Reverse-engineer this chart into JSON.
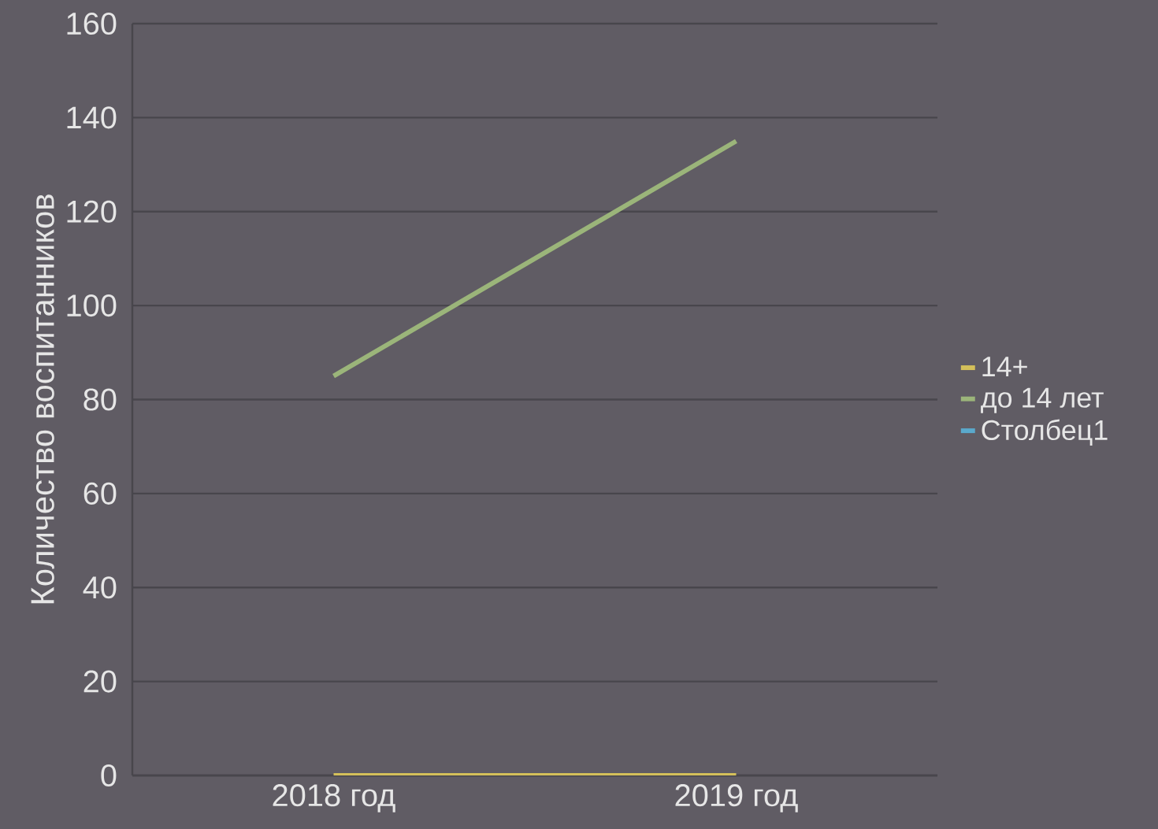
{
  "chart_data": {
    "type": "line",
    "ylabel": "Количество воспитанников",
    "categories": [
      "2018 год",
      "2019 год"
    ],
    "series": [
      {
        "name": "14+",
        "color": "#d4c05a",
        "values": [
          0,
          0
        ]
      },
      {
        "name": "до 14 лет",
        "color": "#9bb57a",
        "values": [
          85,
          135
        ]
      },
      {
        "name": "Столбец1",
        "color": "#5aa9cc",
        "values": [
          null,
          null
        ]
      }
    ],
    "ylim": [
      0,
      160
    ],
    "yticks": [
      0,
      20,
      40,
      60,
      80,
      100,
      120,
      140,
      160
    ],
    "grid": "y",
    "legend": "right"
  }
}
